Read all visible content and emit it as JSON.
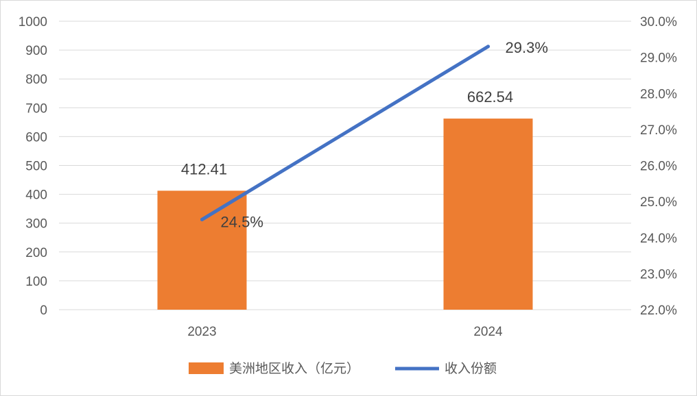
{
  "chart_data": {
    "type": "bar",
    "categories": [
      "2023",
      "2024"
    ],
    "series": [
      {
        "name": "美洲地区收入（亿元）",
        "type": "bar",
        "axis": "left",
        "color": "#ED7D31",
        "values": [
          412.41,
          662.54
        ],
        "data_labels": [
          "412.41",
          "662.54"
        ]
      },
      {
        "name": "收入份额",
        "type": "line",
        "axis": "right",
        "color": "#4472C4",
        "values": [
          24.5,
          29.3
        ],
        "data_labels": [
          "24.5%",
          "29.3%"
        ]
      }
    ],
    "y_left": {
      "min": 0,
      "max": 1000,
      "step": 100,
      "tick_labels": [
        "0",
        "100",
        "200",
        "300",
        "400",
        "500",
        "600",
        "700",
        "800",
        "900",
        "1000"
      ]
    },
    "y_right": {
      "min": 22.0,
      "max": 30.0,
      "step": 1.0,
      "tick_labels": [
        "22.0%",
        "23.0%",
        "24.0%",
        "25.0%",
        "26.0%",
        "27.0%",
        "28.0%",
        "29.0%",
        "30.0%"
      ]
    },
    "grid": true,
    "legend": "bottom-center",
    "gridline_color": "#d9d9d9"
  }
}
